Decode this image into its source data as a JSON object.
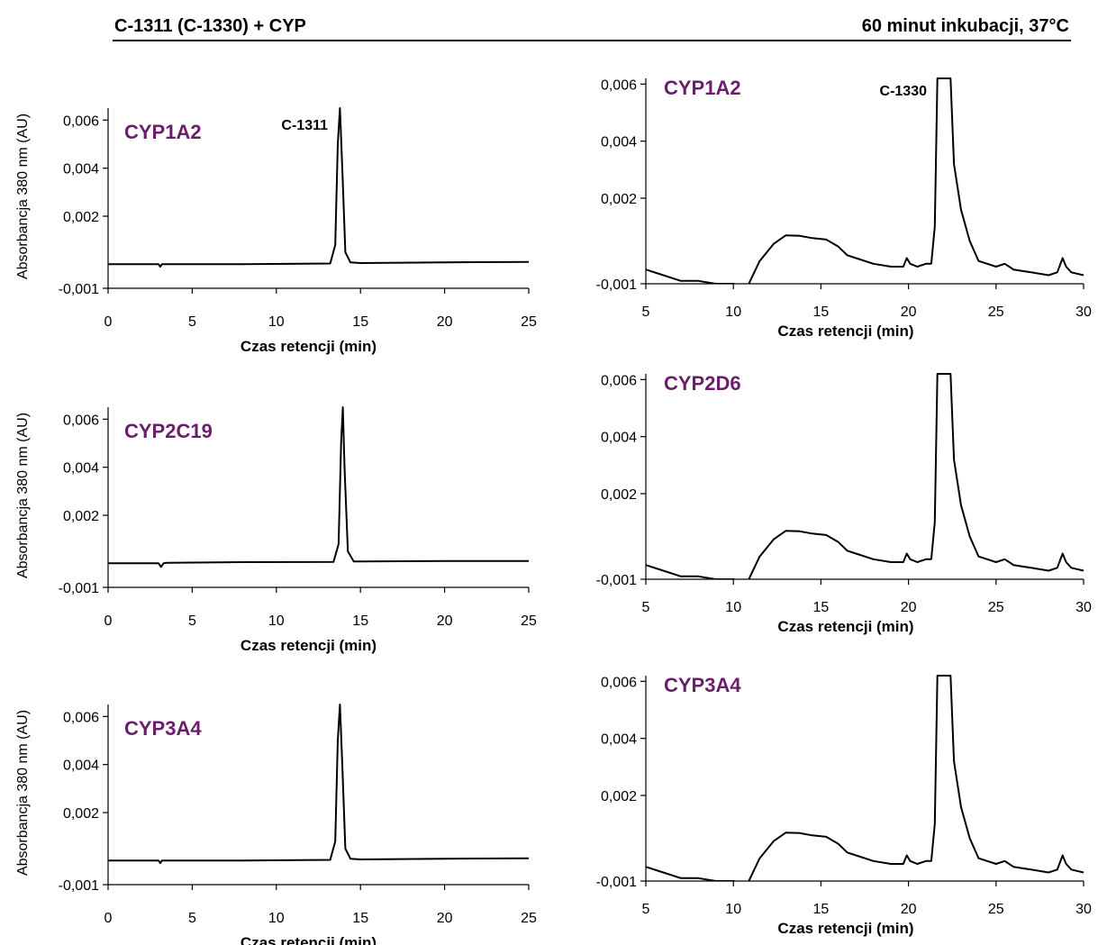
{
  "header": {
    "left": "C-1311 (C-1330) + CYP",
    "right": "60 minut inkubacji, 37°C"
  },
  "colors": {
    "label": "#6b1f6b",
    "trace": "#000000"
  },
  "chart_data": [
    {
      "type": "line",
      "label": "CYP1A2",
      "peak_label": "C-1311",
      "xlabel": "Czas retencji (min)",
      "ylabel": "Absorbancja 380 nm (AU)",
      "xlim": [
        0,
        25
      ],
      "ylim": [
        -0.001,
        0.0065
      ],
      "xticks": [
        0,
        5,
        10,
        15,
        20,
        25
      ],
      "yticks": [
        -0.001,
        0.002,
        0.004,
        0.006
      ],
      "ytick_labels": [
        "-0,001",
        "0,002",
        "0,004",
        "0,006"
      ],
      "series": [
        {
          "x": [
            0,
            3.0,
            3.1,
            3.2,
            3.3,
            8,
            13.2,
            13.5,
            13.65,
            13.78,
            13.92,
            14.1,
            14.4,
            15,
            20,
            25
          ],
          "y": [
            0.0,
            0.0,
            -0.0001,
            0.0,
            0.0,
            0.0,
            3e-05,
            0.0008,
            0.005,
            0.0065,
            0.004,
            0.0005,
            8e-05,
            5e-05,
            8e-05,
            0.0001
          ]
        }
      ]
    },
    {
      "type": "line",
      "label": "CYP1A2",
      "peak_label": "C-1330",
      "xlabel": "Czas retencji (min)",
      "ylabel": "",
      "xlim": [
        5,
        30
      ],
      "ylim": [
        -0.001,
        0.0062
      ],
      "xticks": [
        5,
        10,
        15,
        20,
        25,
        30
      ],
      "yticks": [
        -0.001,
        0.002,
        0.004,
        0.006
      ],
      "ytick_labels": [
        "-0,001",
        "0,002",
        "0,004",
        "0,006"
      ],
      "series": [
        {
          "x": [
            5,
            6,
            7,
            8,
            9,
            10,
            10.8,
            11.5,
            12.3,
            13,
            13.8,
            14.5,
            15.3,
            16,
            16.5,
            17,
            18,
            19,
            19.7,
            19.9,
            20.1,
            20.5,
            21,
            21.3,
            21.5,
            21.65,
            21.75,
            22.2,
            22.4,
            22.6,
            23,
            23.5,
            24,
            25,
            25.5,
            26,
            27,
            28,
            28.5,
            28.8,
            29,
            29.3,
            30
          ],
          "y": [
            -0.0005,
            -0.0007,
            -0.0009,
            -0.0009,
            -0.001,
            -0.001,
            -0.0011,
            -0.0002,
            0.0004,
            0.0007,
            0.00068,
            0.0006,
            0.00055,
            0.0003,
            0.0,
            -0.0001,
            -0.0003,
            -0.0004,
            -0.0004,
            -0.0001,
            -0.0003,
            -0.0004,
            -0.0003,
            -0.0003,
            0.001,
            0.0062,
            0.0062,
            0.0062,
            0.0062,
            0.0032,
            0.0016,
            0.0005,
            -0.0002,
            -0.0004,
            -0.0003,
            -0.0005,
            -0.0006,
            -0.0007,
            -0.0006,
            -0.0001,
            -0.0004,
            -0.0006,
            -0.0007
          ]
        }
      ]
    },
    {
      "type": "line",
      "label": "CYP2C19",
      "xlabel": "Czas retencji (min)",
      "ylabel": "Absorbancja 380 nm (AU)",
      "xlim": [
        0,
        25
      ],
      "ylim": [
        -0.001,
        0.0065
      ],
      "xticks": [
        0,
        5,
        10,
        15,
        20,
        25
      ],
      "yticks": [
        -0.001,
        0.002,
        0.004,
        0.006
      ],
      "ytick_labels": [
        "-0,001",
        "0,002",
        "0,004",
        "0,006"
      ],
      "series": [
        {
          "x": [
            0,
            3.0,
            3.15,
            3.3,
            3.5,
            8,
            13.4,
            13.7,
            13.85,
            13.95,
            14.05,
            14.25,
            14.6,
            15,
            20,
            25
          ],
          "y": [
            0.0,
            0.0,
            -0.00015,
            0.0,
            2e-05,
            5e-05,
            6e-05,
            0.0008,
            0.005,
            0.0065,
            0.004,
            0.0005,
            8e-05,
            8e-05,
            0.0001,
            0.0001
          ]
        }
      ]
    },
    {
      "type": "line",
      "label": "CYP2D6",
      "xlabel": "Czas retencji (min)",
      "ylabel": "",
      "xlim": [
        5,
        30
      ],
      "ylim": [
        -0.001,
        0.0062
      ],
      "xticks": [
        5,
        10,
        15,
        20,
        25,
        30
      ],
      "yticks": [
        -0.001,
        0.002,
        0.004,
        0.006
      ],
      "ytick_labels": [
        "-0,001",
        "0,002",
        "0,004",
        "0,006"
      ],
      "series": [
        {
          "x": [
            5,
            6,
            7,
            8,
            9,
            10,
            10.8,
            11.5,
            12.3,
            13,
            13.8,
            14.5,
            15.3,
            16,
            16.5,
            17,
            18,
            19,
            19.7,
            19.9,
            20.1,
            20.5,
            21,
            21.3,
            21.5,
            21.65,
            21.75,
            22.2,
            22.4,
            22.6,
            23,
            23.5,
            24,
            25,
            25.5,
            26,
            27,
            28,
            28.5,
            28.8,
            29,
            29.3,
            30
          ],
          "y": [
            -0.0005,
            -0.0007,
            -0.0009,
            -0.0009,
            -0.001,
            -0.001,
            -0.0011,
            -0.0002,
            0.0004,
            0.0007,
            0.00068,
            0.0006,
            0.00055,
            0.0003,
            0.0,
            -0.0001,
            -0.0003,
            -0.0004,
            -0.0004,
            -0.0001,
            -0.0003,
            -0.0004,
            -0.0003,
            -0.0003,
            0.001,
            0.0062,
            0.0062,
            0.0062,
            0.0062,
            0.0032,
            0.0016,
            0.0005,
            -0.0002,
            -0.0004,
            -0.0003,
            -0.0005,
            -0.0006,
            -0.0007,
            -0.0006,
            -0.0001,
            -0.0004,
            -0.0006,
            -0.0007
          ]
        }
      ]
    },
    {
      "type": "line",
      "label": "CYP3A4",
      "xlabel": "Czas retencji (min)",
      "ylabel": "Absorbancja 380 nm (AU)",
      "xlim": [
        0,
        25
      ],
      "ylim": [
        -0.001,
        0.0065
      ],
      "xticks": [
        0,
        5,
        10,
        15,
        20,
        25
      ],
      "yticks": [
        -0.001,
        0.002,
        0.004,
        0.006
      ],
      "ytick_labels": [
        "-0,001",
        "0,002",
        "0,004",
        "0,006"
      ],
      "series": [
        {
          "x": [
            0,
            3.0,
            3.1,
            3.2,
            3.3,
            8,
            13.2,
            13.5,
            13.65,
            13.78,
            13.92,
            14.1,
            14.4,
            15,
            20,
            25
          ],
          "y": [
            0.0,
            0.0,
            -0.0001,
            0.0,
            0.0,
            0.0,
            3e-05,
            0.0008,
            0.005,
            0.0065,
            0.004,
            0.0005,
            8e-05,
            5e-05,
            8e-05,
            0.0001
          ]
        }
      ]
    },
    {
      "type": "line",
      "label": "CYP3A4",
      "xlabel": "Czas retencji (min)",
      "ylabel": "",
      "xlim": [
        5,
        30
      ],
      "ylim": [
        -0.001,
        0.0062
      ],
      "xticks": [
        5,
        10,
        15,
        20,
        25,
        30
      ],
      "yticks": [
        -0.001,
        0.002,
        0.004,
        0.006
      ],
      "ytick_labels": [
        "-0,001",
        "0,002",
        "0,004",
        "0,006"
      ],
      "series": [
        {
          "x": [
            5,
            6,
            7,
            8,
            9,
            10,
            10.8,
            11.5,
            12.3,
            13,
            13.8,
            14.5,
            15.3,
            16,
            16.5,
            17,
            18,
            19,
            19.7,
            19.9,
            20.1,
            20.5,
            21,
            21.3,
            21.5,
            21.65,
            21.75,
            22.2,
            22.4,
            22.6,
            23,
            23.5,
            24,
            25,
            25.5,
            26,
            27,
            28,
            28.5,
            28.8,
            29,
            29.3,
            30
          ],
          "y": [
            -0.0005,
            -0.0007,
            -0.0009,
            -0.0009,
            -0.001,
            -0.001,
            -0.0011,
            -0.0002,
            0.0004,
            0.0007,
            0.00068,
            0.0006,
            0.00055,
            0.0003,
            0.0,
            -0.0001,
            -0.0003,
            -0.0004,
            -0.0004,
            -0.0001,
            -0.0003,
            -0.0004,
            -0.0003,
            -0.0003,
            0.001,
            0.0062,
            0.0062,
            0.0062,
            0.0062,
            0.0032,
            0.0016,
            0.0005,
            -0.0002,
            -0.0004,
            -0.0003,
            -0.0005,
            -0.0006,
            -0.0007,
            -0.0006,
            -0.0001,
            -0.0004,
            -0.0006,
            -0.0007
          ]
        }
      ]
    }
  ]
}
